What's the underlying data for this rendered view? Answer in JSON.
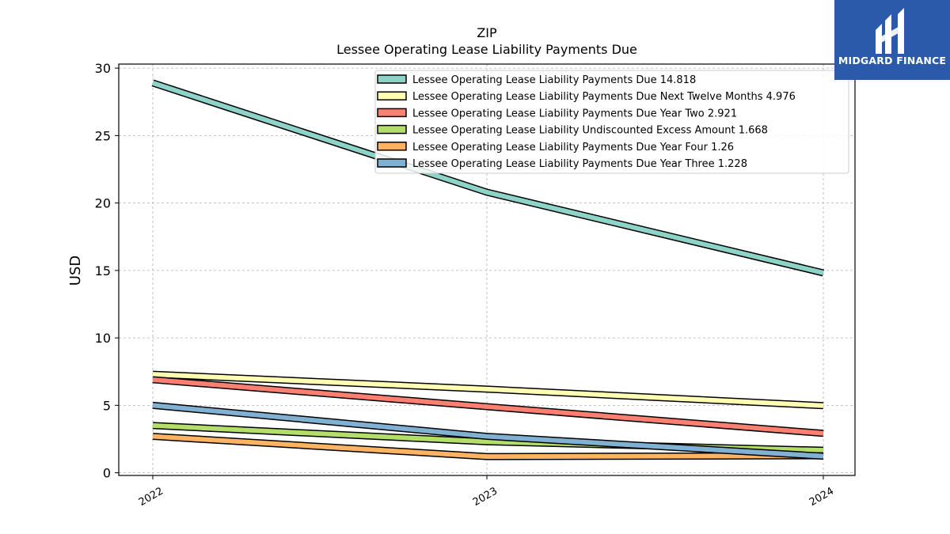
{
  "chart_data": {
    "type": "line",
    "title": "ZIP",
    "subtitle": "Lessee Operating Lease Liability Payments Due",
    "xlabel": "",
    "ylabel": "USD",
    "categories": [
      "2022",
      "2023",
      "2024"
    ],
    "ylim": [
      -0.2,
      30.3
    ],
    "yticks": [
      0,
      5,
      10,
      15,
      20,
      25,
      30
    ],
    "grid": true,
    "legend_position": "top-right",
    "series": [
      {
        "name": "Lessee Operating Lease Liability Payments Due",
        "legend_label": "Lessee Operating Lease Liability Payments Due  14.818",
        "color": "#8dd3c7",
        "values": [
          28.9,
          20.8,
          14.818
        ]
      },
      {
        "name": "Lessee Operating Lease Liability Payments Due Next Twelve Months",
        "legend_label": "Lessee Operating Lease Liability Payments Due Next Twelve Months  4.976",
        "color": "#ffffb3",
        "values": [
          7.3,
          6.2,
          4.976
        ]
      },
      {
        "name": "Lessee Operating Lease Liability Payments Due Year Two",
        "legend_label": "Lessee Operating Lease Liability Payments Due Year Two  2.921",
        "color": "#fb8072",
        "values": [
          6.9,
          4.9,
          2.921
        ]
      },
      {
        "name": "Lessee Operating Lease Liability Undiscounted Excess Amount",
        "legend_label": "Lessee Operating Lease Liability Undiscounted Excess Amount  1.668",
        "color": "#b3de69",
        "values": [
          3.5,
          2.3,
          1.668
        ]
      },
      {
        "name": "Lessee Operating Lease Liability Payments Due Year Four",
        "legend_label": "Lessee Operating Lease Liability Payments Due Year Four  1.26",
        "color": "#fdb462",
        "values": [
          2.7,
          1.2,
          1.26
        ]
      },
      {
        "name": "Lessee Operating Lease Liability Payments Due Year Three",
        "legend_label": "Lessee Operating Lease Liability Payments Due Year Three  1.228",
        "color": "#80b1d3",
        "values": [
          5.0,
          2.7,
          1.228
        ]
      }
    ]
  },
  "logo": {
    "text": "MIDGARD FINANCE",
    "background": "#2b5aab"
  }
}
